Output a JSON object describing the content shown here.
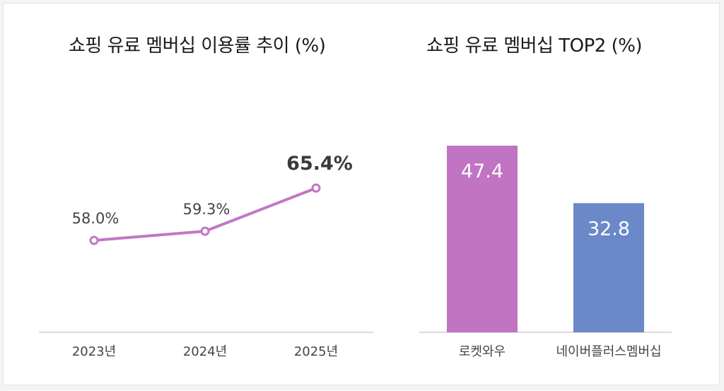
{
  "chart_data": [
    {
      "type": "line",
      "title": "쇼핑 유료 멤버십 이용률 추이 (%)",
      "categories": [
        "2023년",
        "2024년",
        "2025년"
      ],
      "values": [
        58.0,
        59.3,
        65.4
      ],
      "data_labels": [
        "58.0%",
        "59.3%",
        "65.4%"
      ],
      "ylim": [
        45,
        70
      ],
      "grid": false,
      "line_color": "#c177c4"
    },
    {
      "type": "bar",
      "title": "쇼핑 유료 멤버십 TOP2 (%)",
      "categories": [
        "로켓와우",
        "네이버플러스멤버십"
      ],
      "values": [
        47.4,
        32.8
      ],
      "data_labels": [
        "47.4",
        "32.8"
      ],
      "ylim": [
        0,
        55
      ],
      "grid": false,
      "colors": [
        "#c174c3",
        "#6b88c8"
      ]
    }
  ]
}
